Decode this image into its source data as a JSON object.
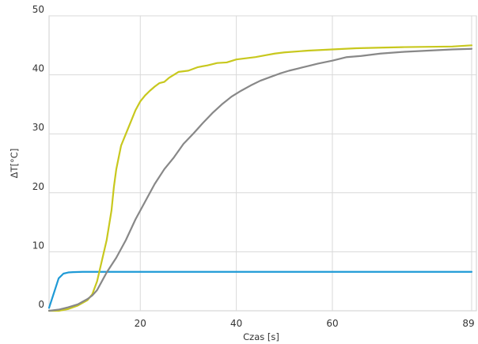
{
  "chart_data": {
    "type": "line",
    "title": "",
    "xlabel": "Czas [s]",
    "ylabel": "ΔT[°C]",
    "xlim": [
      1,
      90
    ],
    "ylim": [
      0,
      50
    ],
    "x_ticks": [
      20,
      40,
      60,
      89
    ],
    "y_ticks": [
      0,
      10,
      20,
      30,
      40,
      50
    ],
    "grid": true,
    "legend": "none",
    "series": [
      {
        "color": "#1f9ad6",
        "points": [
          [
            1,
            0.5
          ],
          [
            2,
            3
          ],
          [
            3,
            5.5
          ],
          [
            4,
            6.3
          ],
          [
            5,
            6.5
          ],
          [
            6,
            6.55
          ],
          [
            8,
            6.6
          ],
          [
            10,
            6.6
          ],
          [
            20,
            6.6
          ],
          [
            40,
            6.6
          ],
          [
            60,
            6.6
          ],
          [
            89,
            6.6
          ]
        ]
      },
      {
        "color": "#c8c81e",
        "points": [
          [
            1,
            0
          ],
          [
            3,
            0
          ],
          [
            5,
            0.3
          ],
          [
            7,
            0.9
          ],
          [
            9,
            1.8
          ],
          [
            10,
            2.8
          ],
          [
            11,
            5
          ],
          [
            12,
            8.5
          ],
          [
            13,
            12
          ],
          [
            14,
            17
          ],
          [
            14.5,
            21
          ],
          [
            15,
            24
          ],
          [
            16,
            28
          ],
          [
            17,
            30
          ],
          [
            18,
            32
          ],
          [
            19,
            34
          ],
          [
            20,
            35.5
          ],
          [
            21,
            36.5
          ],
          [
            22,
            37.3
          ],
          [
            23,
            38
          ],
          [
            24,
            38.6
          ],
          [
            25,
            38.8
          ],
          [
            26,
            39.5
          ],
          [
            28,
            40.5
          ],
          [
            30,
            40.7
          ],
          [
            32,
            41.3
          ],
          [
            34,
            41.6
          ],
          [
            36,
            42
          ],
          [
            38,
            42.1
          ],
          [
            40,
            42.6
          ],
          [
            42,
            42.8
          ],
          [
            44,
            43
          ],
          [
            46,
            43.3
          ],
          [
            48,
            43.6
          ],
          [
            50,
            43.8
          ],
          [
            55,
            44.1
          ],
          [
            60,
            44.3
          ],
          [
            65,
            44.5
          ],
          [
            70,
            44.6
          ],
          [
            75,
            44.7
          ],
          [
            80,
            44.75
          ],
          [
            85,
            44.8
          ],
          [
            89,
            45
          ]
        ]
      },
      {
        "color": "#888888",
        "points": [
          [
            1,
            0
          ],
          [
            3,
            0.2
          ],
          [
            5,
            0.6
          ],
          [
            7,
            1.1
          ],
          [
            9,
            2
          ],
          [
            10,
            2.6
          ],
          [
            11,
            3.5
          ],
          [
            12,
            5
          ],
          [
            13,
            6.5
          ],
          [
            15,
            9
          ],
          [
            17,
            12
          ],
          [
            19,
            15.5
          ],
          [
            21,
            18.5
          ],
          [
            23,
            21.5
          ],
          [
            25,
            24
          ],
          [
            27,
            26
          ],
          [
            29,
            28.3
          ],
          [
            31,
            30
          ],
          [
            33,
            31.8
          ],
          [
            35,
            33.5
          ],
          [
            37,
            35
          ],
          [
            39,
            36.3
          ],
          [
            41,
            37.3
          ],
          [
            43,
            38.2
          ],
          [
            45,
            39
          ],
          [
            47,
            39.6
          ],
          [
            49,
            40.2
          ],
          [
            51,
            40.7
          ],
          [
            53,
            41.1
          ],
          [
            55,
            41.5
          ],
          [
            57,
            41.9
          ],
          [
            60,
            42.4
          ],
          [
            63,
            43
          ],
          [
            66,
            43.2
          ],
          [
            70,
            43.6
          ],
          [
            75,
            43.9
          ],
          [
            80,
            44.1
          ],
          [
            85,
            44.3
          ],
          [
            89,
            44.4
          ]
        ]
      }
    ]
  }
}
